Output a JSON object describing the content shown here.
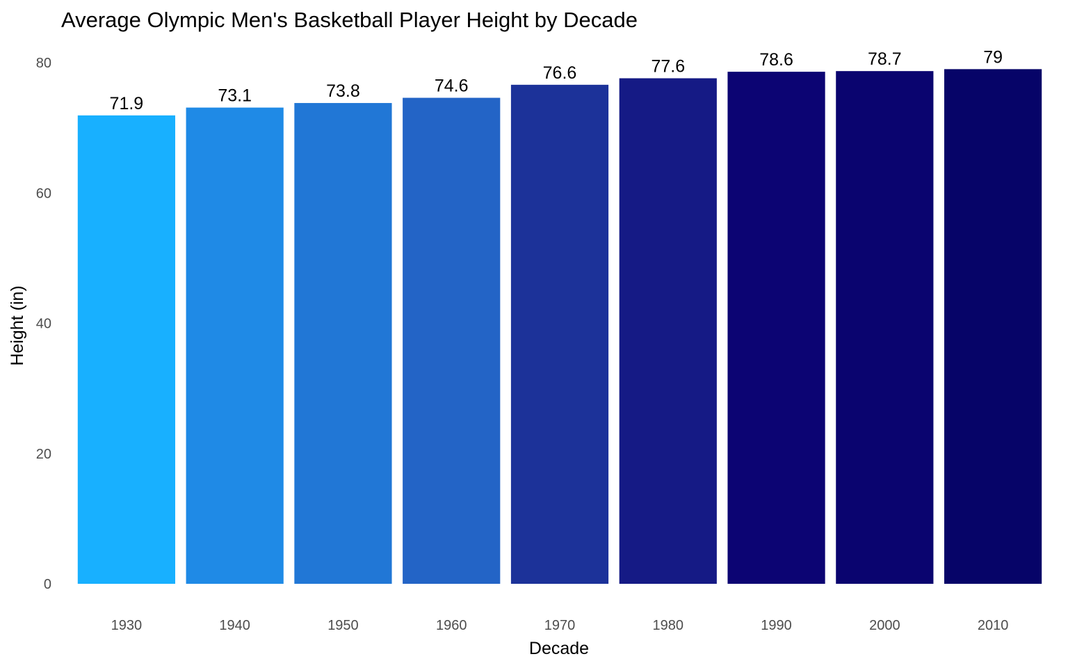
{
  "chart_data": {
    "type": "bar",
    "title": "Average Olympic Men's Basketball Player Height by Decade",
    "xlabel": "Decade",
    "ylabel": "Height (in)",
    "categories": [
      "1930",
      "1940",
      "1950",
      "1960",
      "1970",
      "1980",
      "1990",
      "2000",
      "2010"
    ],
    "values": [
      71.9,
      73.1,
      73.8,
      74.6,
      76.6,
      77.6,
      78.6,
      78.7,
      79
    ],
    "value_labels": [
      "71.9",
      "73.1",
      "73.8",
      "74.6",
      "76.6",
      "77.6",
      "78.6",
      "78.7",
      "79"
    ],
    "colors": [
      "#18b0ff",
      "#1f8ae6",
      "#2177d6",
      "#2364c6",
      "#1c3299",
      "#151a85",
      "#0c0473",
      "#0a046f",
      "#060468"
    ],
    "ylim": [
      0,
      80
    ],
    "yticks": [
      0,
      20,
      40,
      60,
      80
    ],
    "ytick_labels": [
      "0",
      "20",
      "40",
      "60",
      "80"
    ],
    "grid": false,
    "legend": "none"
  }
}
